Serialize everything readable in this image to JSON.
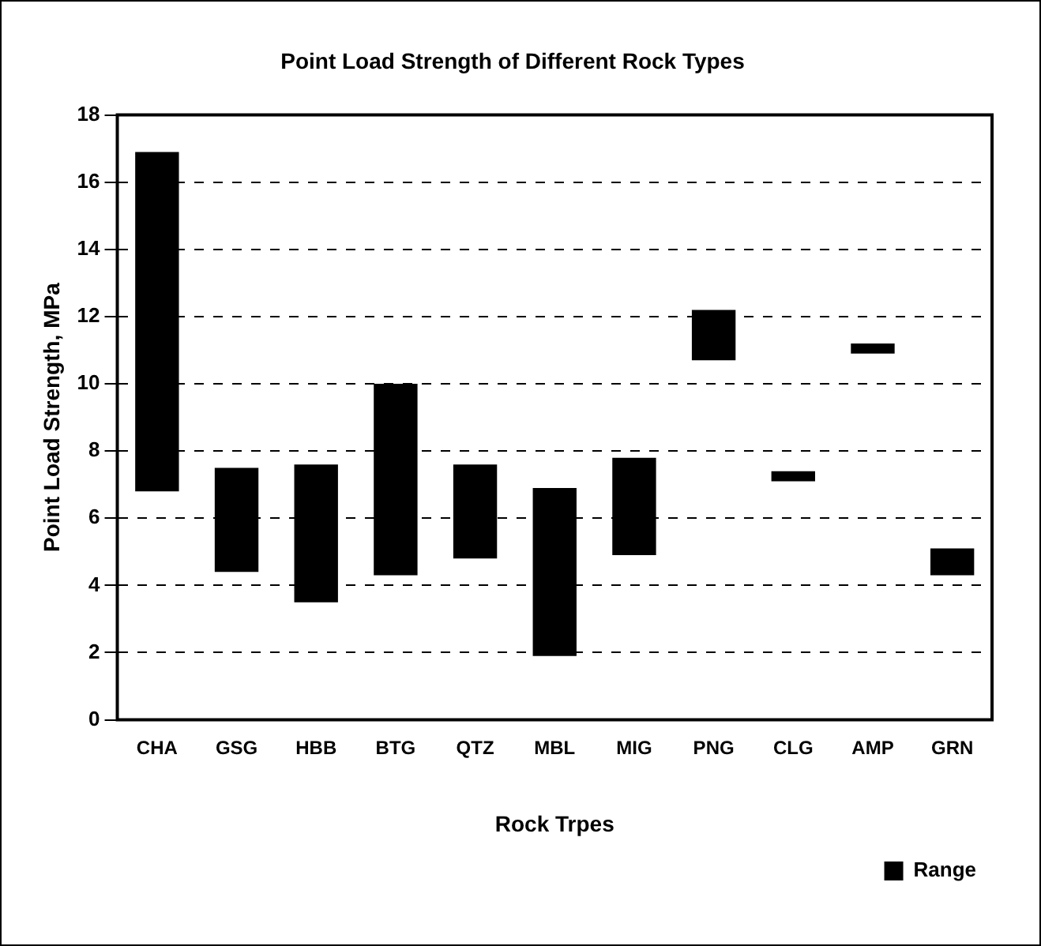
{
  "chart_data": {
    "type": "bar",
    "title": "Point Load Strength of Different Rock Types",
    "xlabel": "Rock Trpes",
    "ylabel": "Point Load Strength, MPa",
    "categories": [
      "CHA",
      "GSG",
      "HBB",
      "BTG",
      "QTZ",
      "MBL",
      "MIG",
      "PNG",
      "CLG",
      "AMP",
      "GRN"
    ],
    "series": [
      {
        "name": "Range",
        "color": "#000000",
        "values": [
          10.1,
          3.1,
          4.1,
          5.7,
          2.8,
          5.0,
          2.9,
          1.5,
          0.3,
          0.3,
          0.8
        ],
        "base": [
          6.8,
          4.4,
          3.5,
          4.3,
          4.8,
          1.9,
          4.9,
          10.7,
          7.1,
          10.9,
          4.3
        ]
      }
    ],
    "ylim": [
      0,
      18
    ],
    "yticks": [
      0,
      2,
      4,
      6,
      8,
      10,
      12,
      14,
      16,
      18
    ],
    "grid": "y",
    "legend": "bottom right"
  }
}
